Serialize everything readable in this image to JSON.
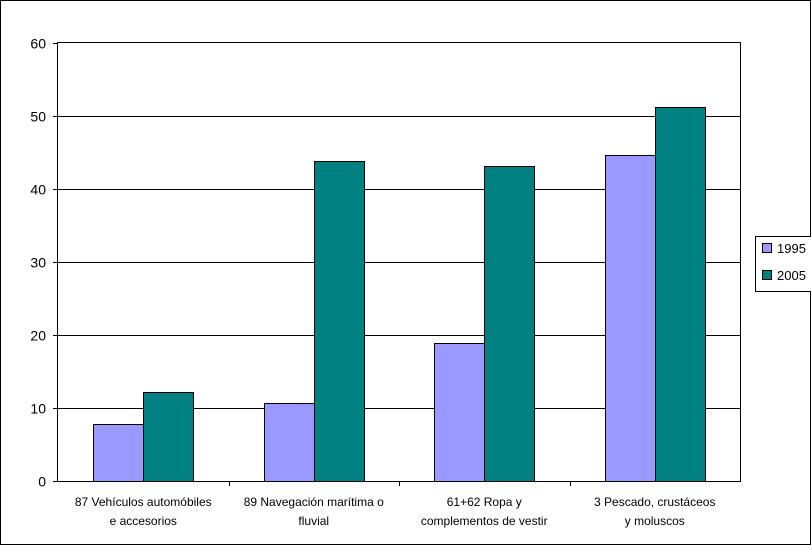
{
  "chart_data": {
    "type": "bar",
    "title": "",
    "xlabel": "",
    "ylabel": "",
    "ylim": [
      0,
      60
    ],
    "yticks": [
      0,
      10,
      20,
      30,
      40,
      50,
      60
    ],
    "grid": true,
    "legend_position": "right",
    "categories": [
      [
        "87 Vehículos automóbiles",
        "e accesorios"
      ],
      [
        "89 Navegación marítima o",
        "fluvial"
      ],
      [
        "61+62 Ropa y",
        "complementos de vestir"
      ],
      [
        "3  Pescado, crustáceos",
        "y moluscos"
      ]
    ],
    "series": [
      {
        "name": "1995",
        "color": "#9999ff",
        "values": [
          7.8,
          10.7,
          18.9,
          44.7
        ]
      },
      {
        "name": "2005",
        "color": "#008080",
        "values": [
          12.2,
          43.8,
          43.1,
          51.2
        ]
      }
    ]
  }
}
